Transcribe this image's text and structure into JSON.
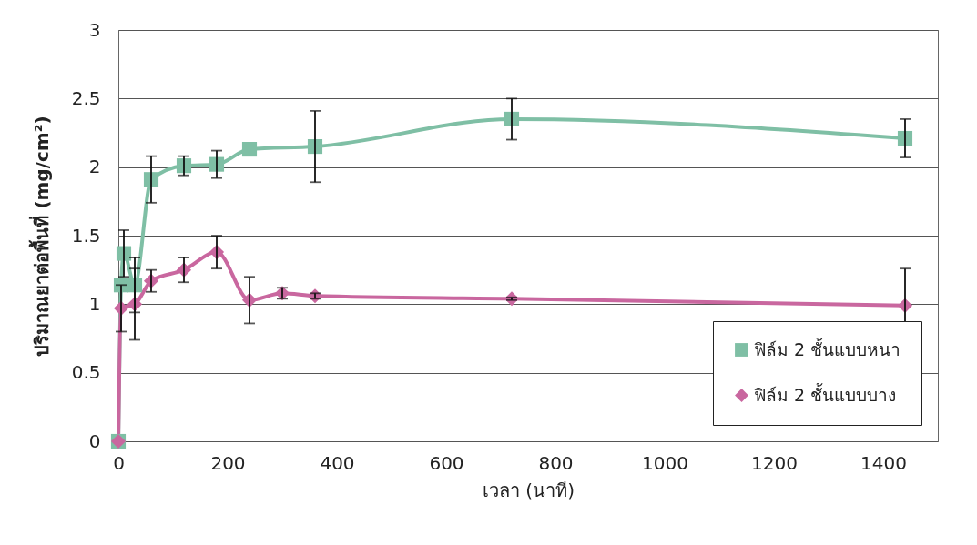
{
  "chart_data": {
    "type": "line",
    "xlabel": "เวลา (นาที)",
    "ylabel": "ปริมาณยาต่อพื้นที่ (mg/cm²)",
    "xlim": [
      0,
      1500
    ],
    "xticks": [
      0,
      200,
      400,
      600,
      800,
      1000,
      1200,
      1400
    ],
    "ylim": [
      0,
      3
    ],
    "yticks": [
      0,
      0.5,
      1,
      1.5,
      2,
      2.5,
      3
    ],
    "grid": "y",
    "legend": "bottom right",
    "line_style": "solid",
    "series": [
      {
        "name": "ฟิล์ม 2 ชั้นแบบหนา",
        "color": "#7fbfa5",
        "marker": "square",
        "x": [
          0,
          5,
          10,
          30,
          60,
          120,
          180,
          240,
          360,
          720,
          1440
        ],
        "values": [
          0,
          1.14,
          1.37,
          1.14,
          1.91,
          2.01,
          2.02,
          2.13,
          2.15,
          2.35,
          2.21
        ],
        "errors": [
          null,
          null,
          0.17,
          0.2,
          0.17,
          0.07,
          0.1,
          null,
          0.26,
          0.15,
          0.14
        ]
      },
      {
        "name": "ฟิล์ม 2 ชั้นแบบบาง",
        "color": "#c9679f",
        "marker": "diamond",
        "x": [
          0,
          5,
          30,
          60,
          120,
          180,
          240,
          300,
          360,
          720,
          1440
        ],
        "values": [
          0,
          0.97,
          1.0,
          1.17,
          1.25,
          1.38,
          1.03,
          1.08,
          1.06,
          1.04,
          0.99
        ],
        "errors": [
          null,
          0.17,
          0.26,
          0.08,
          0.09,
          0.12,
          0.17,
          0.04,
          0.02,
          0.01,
          0.27
        ]
      }
    ]
  }
}
